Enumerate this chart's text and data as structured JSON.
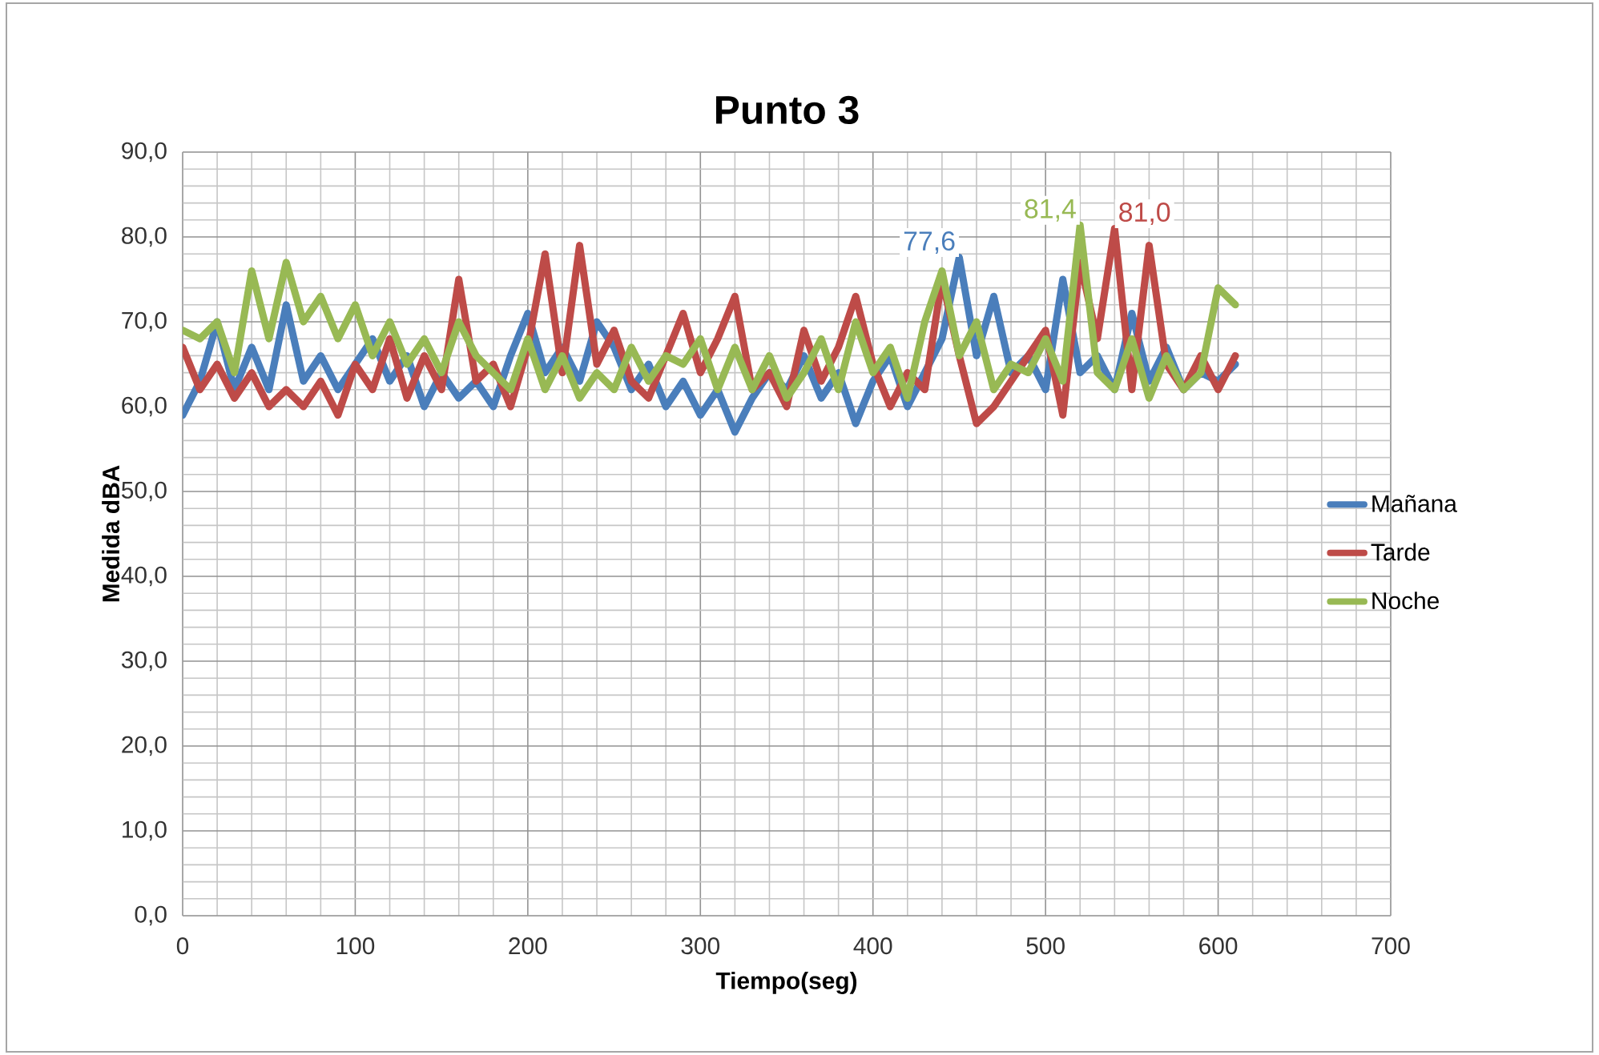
{
  "chart_data": {
    "type": "line",
    "title": "Punto 3",
    "xlabel": "Tiempo(seg)",
    "ylabel": "Medida dBA",
    "x": [
      0,
      10,
      20,
      30,
      40,
      50,
      60,
      70,
      80,
      90,
      100,
      110,
      120,
      130,
      140,
      150,
      160,
      170,
      180,
      190,
      200,
      210,
      220,
      230,
      240,
      250,
      260,
      270,
      280,
      290,
      300,
      310,
      320,
      330,
      340,
      350,
      360,
      370,
      380,
      390,
      400,
      410,
      420,
      430,
      440,
      450,
      460,
      470,
      480,
      490,
      500,
      510,
      520,
      530,
      540,
      550,
      560,
      570,
      580,
      590,
      600,
      610
    ],
    "series": [
      {
        "name": "Mañana",
        "color": "#4a7ebb",
        "values": [
          59,
          63,
          70,
          62,
          67,
          62,
          72,
          63,
          66,
          62,
          65,
          68,
          63,
          66,
          60,
          64,
          61,
          63,
          60,
          66,
          71,
          64,
          67,
          63,
          70,
          67,
          62,
          65,
          60,
          63,
          59,
          62,
          57,
          61,
          64,
          62,
          66,
          61,
          64,
          58,
          63,
          66,
          60,
          64,
          68,
          77.6,
          66,
          73,
          64,
          66,
          62,
          75,
          64,
          66,
          62,
          71,
          63,
          67,
          62,
          64,
          63,
          65
        ]
      },
      {
        "name": "Tarde",
        "color": "#be4b48",
        "values": [
          67,
          62,
          65,
          61,
          64,
          60,
          62,
          60,
          63,
          59,
          65,
          62,
          68,
          61,
          66,
          62,
          75,
          63,
          65,
          60,
          67,
          78,
          64,
          79,
          65,
          69,
          63,
          61,
          66,
          71,
          64,
          68,
          73,
          62,
          64,
          60,
          69,
          63,
          67,
          73,
          65,
          60,
          64,
          62,
          75,
          66,
          58,
          60,
          63,
          66,
          69,
          59,
          77,
          68,
          81.0,
          62,
          79,
          65,
          62,
          66,
          62,
          66
        ]
      },
      {
        "name": "Noche",
        "color": "#98b954",
        "values": [
          69,
          68,
          70,
          64,
          76,
          68,
          77,
          70,
          73,
          68,
          72,
          66,
          70,
          65,
          68,
          64,
          70,
          66,
          64,
          62,
          68,
          62,
          66,
          61,
          64,
          62,
          67,
          63,
          66,
          65,
          68,
          62,
          67,
          62,
          66,
          61,
          64,
          68,
          62,
          70,
          64,
          67,
          61,
          70,
          76,
          66,
          70,
          62,
          65,
          64,
          68,
          63,
          81.4,
          64,
          62,
          68,
          61,
          66,
          62,
          64,
          74,
          72
        ]
      }
    ],
    "xlim": [
      0,
      700
    ],
    "xticks": [
      0,
      100,
      200,
      300,
      400,
      500,
      600,
      700
    ],
    "ylim": [
      0,
      90
    ],
    "yticks": [
      {
        "value": 0,
        "label": "0,0"
      },
      {
        "value": 10,
        "label": "10,0"
      },
      {
        "value": 20,
        "label": "20,0"
      },
      {
        "value": 30,
        "label": "30,0"
      },
      {
        "value": 40,
        "label": "40,0"
      },
      {
        "value": 50,
        "label": "50,0"
      },
      {
        "value": 60,
        "label": "60,0"
      },
      {
        "value": 70,
        "label": "70,0"
      },
      {
        "value": 80,
        "label": "80,0"
      },
      {
        "value": 90,
        "label": "90,0"
      }
    ],
    "annotations": [
      {
        "text": "77,6",
        "x": 450,
        "y": 77.6
      },
      {
        "text": "81,0",
        "x": 540,
        "y": 81.0
      },
      {
        "text": "81,4",
        "x": 520,
        "y": 81.4
      }
    ],
    "grid": true,
    "legend": "right",
    "marker": "none",
    "line_style": "solid"
  }
}
